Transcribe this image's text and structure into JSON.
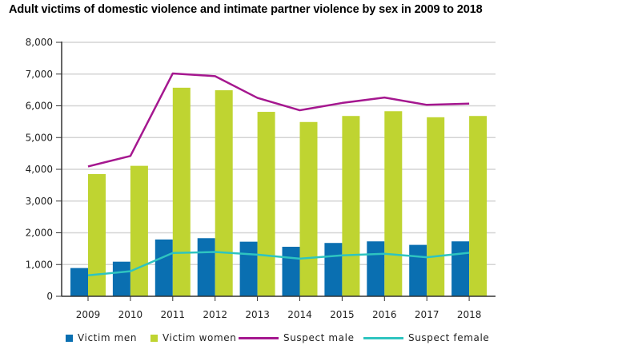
{
  "chart_data": {
    "type": "bar",
    "title": "Adult victims of domestic violence and intimate partner violence by sex in 2009 to 2018",
    "xlabel": "",
    "ylabel": "",
    "ylim": [
      0,
      8000
    ],
    "yticks": [
      0,
      1000,
      2000,
      3000,
      4000,
      5000,
      6000,
      7000,
      8000
    ],
    "ytick_labels": [
      "0",
      "1,000",
      "2,000",
      "3,000",
      "4,000",
      "5,000",
      "6,000",
      "7,000",
      "8,000"
    ],
    "grid": true,
    "legend_position": "bottom",
    "categories": [
      "2009",
      "2010",
      "2011",
      "2012",
      "2013",
      "2014",
      "2015",
      "2016",
      "2017",
      "2018"
    ],
    "series": [
      {
        "name": "Victim men",
        "type": "bar",
        "color": "#0a6fb1",
        "values": [
          890,
          1090,
          1790,
          1830,
          1720,
          1560,
          1680,
          1730,
          1620,
          1730
        ]
      },
      {
        "name": "Victim women",
        "type": "bar",
        "color": "#bfd431",
        "values": [
          3850,
          4110,
          6570,
          6490,
          5810,
          5490,
          5680,
          5830,
          5640,
          5680
        ]
      },
      {
        "name": "Suspect male",
        "type": "line",
        "color": "#a5178f",
        "values": [
          4090,
          4420,
          7020,
          6935,
          6250,
          5860,
          6090,
          6260,
          6030,
          6070
        ]
      },
      {
        "name": "Suspect female",
        "type": "line",
        "color": "#2ec4c0",
        "values": [
          660,
          790,
          1365,
          1395,
          1310,
          1185,
          1290,
          1340,
          1230,
          1370
        ]
      }
    ]
  },
  "legend": {
    "items": [
      {
        "label": "Victim men",
        "kind": "swatch",
        "color": "#0a6fb1"
      },
      {
        "label": "Victim women",
        "kind": "swatch",
        "color": "#bfd431"
      },
      {
        "label": "Suspect male",
        "kind": "line",
        "color": "#a5178f"
      },
      {
        "label": "Suspect female",
        "kind": "line",
        "color": "#2ec4c0"
      }
    ]
  }
}
